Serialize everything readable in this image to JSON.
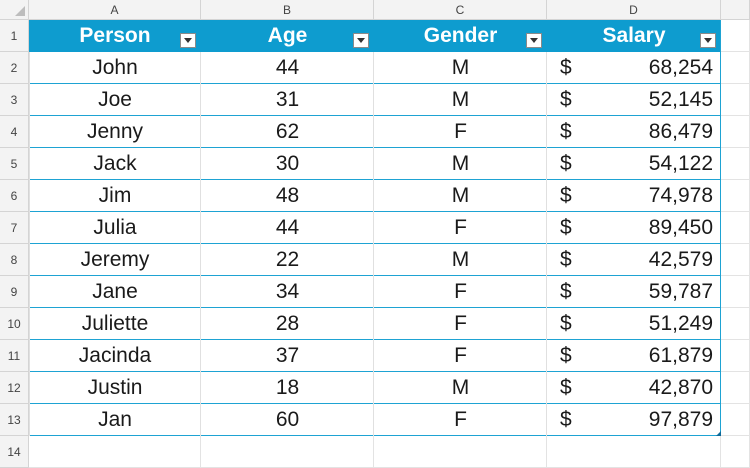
{
  "column_headers": [
    "A",
    "B",
    "C",
    "D"
  ],
  "row_headers": [
    "1",
    "2",
    "3",
    "4",
    "5",
    "6",
    "7",
    "8",
    "9",
    "10",
    "11",
    "12",
    "13",
    "14"
  ],
  "table": {
    "headers": [
      "Person",
      "Age",
      "Gender",
      "Salary"
    ],
    "currency_symbol": "$",
    "rows": [
      [
        "John",
        "44",
        "M",
        "68,254"
      ],
      [
        "Joe",
        "31",
        "M",
        "52,145"
      ],
      [
        "Jenny",
        "62",
        "F",
        "86,479"
      ],
      [
        "Jack",
        "30",
        "M",
        "54,122"
      ],
      [
        "Jim",
        "48",
        "M",
        "74,978"
      ],
      [
        "Julia",
        "44",
        "F",
        "89,450"
      ],
      [
        "Jeremy",
        "22",
        "M",
        "42,579"
      ],
      [
        "Jane",
        "34",
        "F",
        "59,787"
      ],
      [
        "Juliette",
        "28",
        "F",
        "51,249"
      ],
      [
        "Jacinda",
        "37",
        "F",
        "61,879"
      ],
      [
        "Justin",
        "18",
        "M",
        "42,870"
      ],
      [
        "Jan",
        "60",
        "F",
        "97,879"
      ]
    ]
  },
  "colors": {
    "header_fill": "#0e9ccf",
    "header_text": "#ffffff",
    "row_border": "#1ea3d3"
  }
}
